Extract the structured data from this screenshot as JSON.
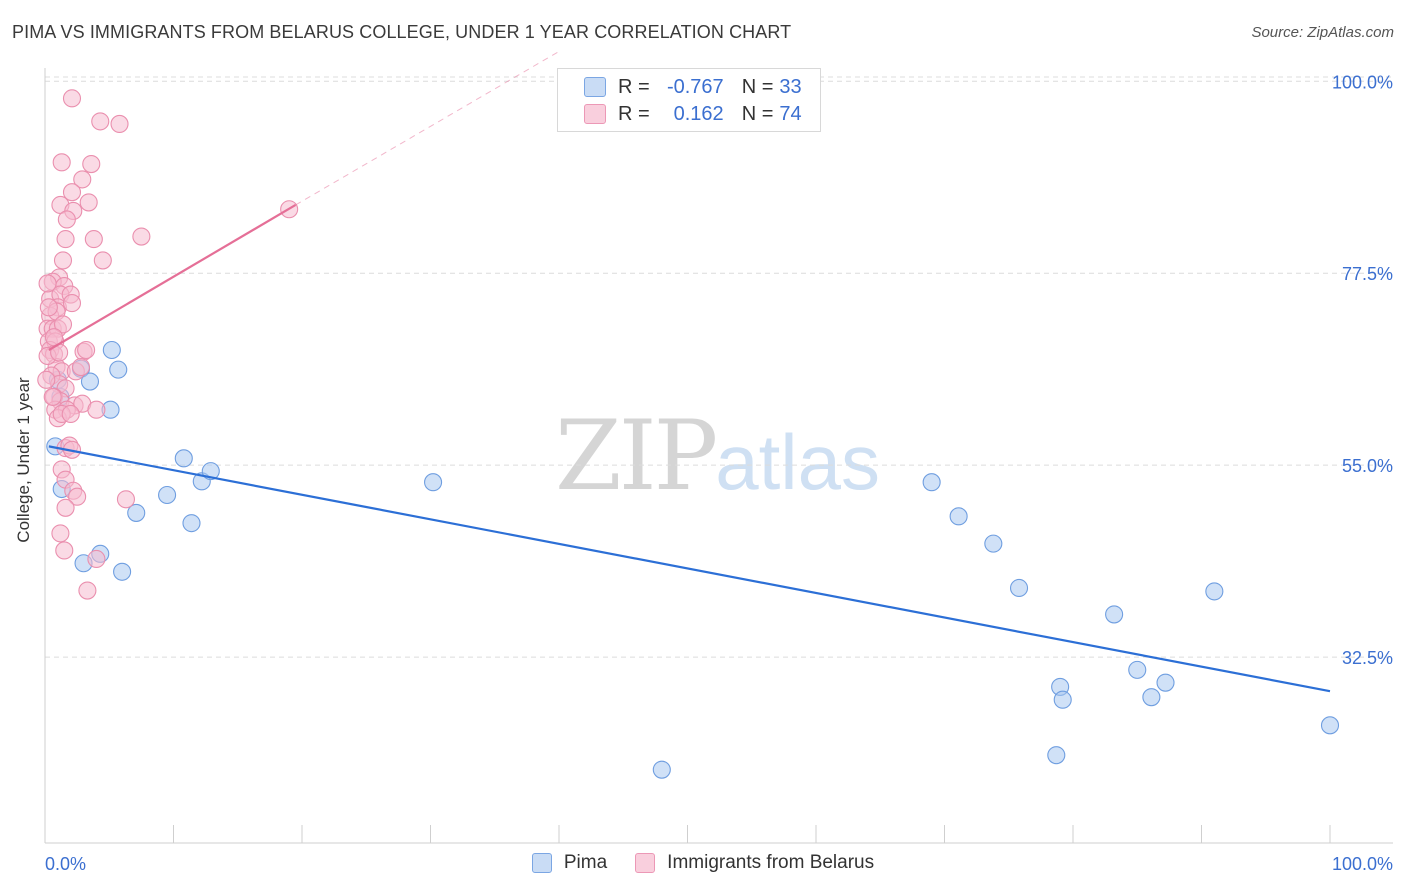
{
  "title": "PIMA VS IMMIGRANTS FROM BELARUS COLLEGE, UNDER 1 YEAR CORRELATION CHART",
  "source": "Source: ZipAtlas.com",
  "watermark": {
    "zip": "ZIP",
    "atlas": "atlas"
  },
  "legend": {
    "rows": [
      {
        "r_label": "R =",
        "r_value": "-0.767",
        "n_label": "N =",
        "n_value": "33"
      },
      {
        "r_label": "R =",
        "r_value": "0.162",
        "n_label": "N =",
        "n_value": "74"
      }
    ]
  },
  "bottom_legend": [
    "Pima",
    "Immigrants from Belarus"
  ],
  "colors": {
    "pima_fill": "#a9c8f0",
    "pima_stroke": "#6f9ee0",
    "pima_line": "#2c6fd6",
    "belarus_fill": "#f6bcd0",
    "belarus_stroke": "#ea8fae",
    "belarus_line": "#e56f97",
    "grid": "#dcdcdc",
    "tick_text": "#3b6fd0"
  },
  "chart_data": {
    "type": "scatter",
    "title": "PIMA VS IMMIGRANTS FROM BELARUS COLLEGE, UNDER 1 YEAR CORRELATION CHART",
    "xlabel": "",
    "ylabel": "College, Under 1 year",
    "xlim": [
      0,
      100
    ],
    "ylim": [
      10,
      104
    ],
    "x_tick_labels": [
      "0.0%",
      "100.0%"
    ],
    "y_ticks": [
      100.0,
      77.5,
      55.0,
      32.5
    ],
    "y_tick_labels": [
      "100.0%",
      "77.5%",
      "55.0%",
      "32.5%"
    ],
    "grid": true,
    "series": [
      {
        "name": "Pima",
        "r": -0.767,
        "n": 33,
        "trend": {
          "x": [
            0.3,
            100
          ],
          "y": [
            57.2,
            28.5
          ]
        },
        "points": [
          [
            0.8,
            57.2
          ],
          [
            1.0,
            65.0
          ],
          [
            1.2,
            63.0
          ],
          [
            1.3,
            52.2
          ],
          [
            2.8,
            66.3
          ],
          [
            3.0,
            43.5
          ],
          [
            3.5,
            64.8
          ],
          [
            4.3,
            44.6
          ],
          [
            5.2,
            68.5
          ],
          [
            5.7,
            66.2
          ],
          [
            5.1,
            61.5
          ],
          [
            6.0,
            42.5
          ],
          [
            7.1,
            49.4
          ],
          [
            9.5,
            51.5
          ],
          [
            10.8,
            55.8
          ],
          [
            11.4,
            48.2
          ],
          [
            12.2,
            53.1
          ],
          [
            12.9,
            54.3
          ],
          [
            30.2,
            53.0
          ],
          [
            48.0,
            19.3
          ],
          [
            69.0,
            53.0
          ],
          [
            71.1,
            49.0
          ],
          [
            73.8,
            45.8
          ],
          [
            75.8,
            40.6
          ],
          [
            78.7,
            21.0
          ],
          [
            79.0,
            29.0
          ],
          [
            79.2,
            27.5
          ],
          [
            83.2,
            37.5
          ],
          [
            85.0,
            31.0
          ],
          [
            86.1,
            27.8
          ],
          [
            87.2,
            29.5
          ],
          [
            91.0,
            40.2
          ],
          [
            100.0,
            24.5
          ]
        ]
      },
      {
        "name": "Immigrants from Belarus",
        "r": 0.162,
        "n": 74,
        "trend": {
          "x": [
            0.3,
            19.5
          ],
          "y": [
            68.5,
            85.5
          ]
        },
        "trend_dashed": {
          "x": [
            19.5,
            40.0
          ],
          "y": [
            85.5,
            103.5
          ]
        },
        "points": [
          [
            2.1,
            98.0
          ],
          [
            4.3,
            95.3
          ],
          [
            5.8,
            95.0
          ],
          [
            1.3,
            90.5
          ],
          [
            3.6,
            90.3
          ],
          [
            2.9,
            88.5
          ],
          [
            2.1,
            87.0
          ],
          [
            1.2,
            85.5
          ],
          [
            3.4,
            85.8
          ],
          [
            2.2,
            84.8
          ],
          [
            1.7,
            83.8
          ],
          [
            1.6,
            81.5
          ],
          [
            3.8,
            81.5
          ],
          [
            7.5,
            81.8
          ],
          [
            1.4,
            79.0
          ],
          [
            4.5,
            79.0
          ],
          [
            1.1,
            77.0
          ],
          [
            0.6,
            76.5
          ],
          [
            1.5,
            76.0
          ],
          [
            0.4,
            74.5
          ],
          [
            1.2,
            75.0
          ],
          [
            2.0,
            75.0
          ],
          [
            1.0,
            73.5
          ],
          [
            2.1,
            74.0
          ],
          [
            0.4,
            72.5
          ],
          [
            0.9,
            73.0
          ],
          [
            0.2,
            71.0
          ],
          [
            0.6,
            71.0
          ],
          [
            1.0,
            71.0
          ],
          [
            1.4,
            71.5
          ],
          [
            0.3,
            69.5
          ],
          [
            0.8,
            69.5
          ],
          [
            0.4,
            68.5
          ],
          [
            0.7,
            68.0
          ],
          [
            3.0,
            68.3
          ],
          [
            3.2,
            68.5
          ],
          [
            0.9,
            66.5
          ],
          [
            1.3,
            66.0
          ],
          [
            2.4,
            66.0
          ],
          [
            2.8,
            66.5
          ],
          [
            0.5,
            65.5
          ],
          [
            1.1,
            64.5
          ],
          [
            1.6,
            64.0
          ],
          [
            0.7,
            63.0
          ],
          [
            1.2,
            62.5
          ],
          [
            2.3,
            62.0
          ],
          [
            2.9,
            62.2
          ],
          [
            0.8,
            61.5
          ],
          [
            1.7,
            61.5
          ],
          [
            4.0,
            61.5
          ],
          [
            1.0,
            60.5
          ],
          [
            1.3,
            61.0
          ],
          [
            2.0,
            61.0
          ],
          [
            1.6,
            57.0
          ],
          [
            1.9,
            57.3
          ],
          [
            2.1,
            56.8
          ],
          [
            1.3,
            54.5
          ],
          [
            1.6,
            53.3
          ],
          [
            2.2,
            52.0
          ],
          [
            2.5,
            51.3
          ],
          [
            1.6,
            50.0
          ],
          [
            6.3,
            51.0
          ],
          [
            1.2,
            47.0
          ],
          [
            1.5,
            45.0
          ],
          [
            4.0,
            44.0
          ],
          [
            3.3,
            40.3
          ],
          [
            0.6,
            63.0
          ],
          [
            0.2,
            67.8
          ],
          [
            1.1,
            68.2
          ],
          [
            0.2,
            76.3
          ],
          [
            0.3,
            73.5
          ],
          [
            0.7,
            70.0
          ],
          [
            0.1,
            65.0
          ],
          [
            19.0,
            85.0
          ]
        ]
      }
    ]
  }
}
